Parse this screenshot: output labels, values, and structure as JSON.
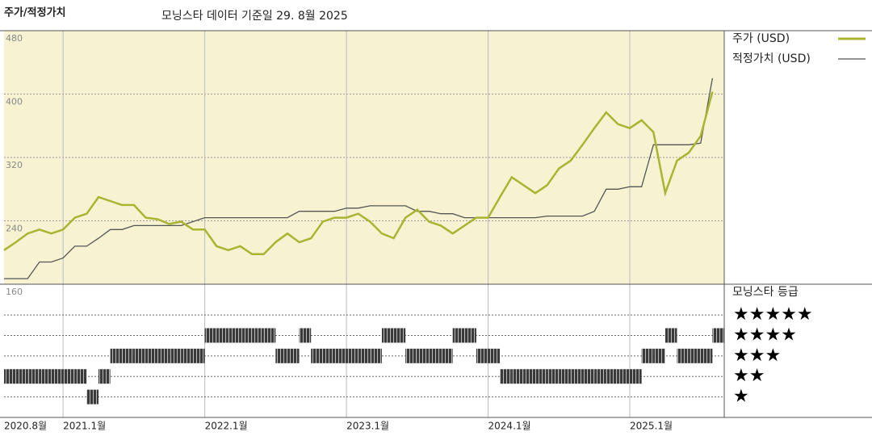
{
  "chart_data": {
    "type": "line",
    "title": "주가/적정가치",
    "subtitle": "모닝스타 데이터 기준일 29. 8월 2025",
    "x": [
      "2020-08",
      "2020-09",
      "2020-10",
      "2020-11",
      "2020-12",
      "2021-01",
      "2021-02",
      "2021-03",
      "2021-04",
      "2021-05",
      "2021-06",
      "2021-07",
      "2021-08",
      "2021-09",
      "2021-10",
      "2021-11",
      "2021-12",
      "2022-01",
      "2022-02",
      "2022-03",
      "2022-04",
      "2022-05",
      "2022-06",
      "2022-07",
      "2022-08",
      "2022-09",
      "2022-10",
      "2022-11",
      "2022-12",
      "2023-01",
      "2023-02",
      "2023-03",
      "2023-04",
      "2023-05",
      "2023-06",
      "2023-07",
      "2023-08",
      "2023-09",
      "2023-10",
      "2023-11",
      "2023-12",
      "2024-01",
      "2024-02",
      "2024-03",
      "2024-04",
      "2024-05",
      "2024-06",
      "2024-07",
      "2024-08",
      "2024-09",
      "2024-10",
      "2024-11",
      "2024-12",
      "2025-01",
      "2025-02",
      "2025-03",
      "2025-04",
      "2025-05",
      "2025-06",
      "2025-07",
      "2025-08"
    ],
    "xlim": [
      "2020-08",
      "2025-09"
    ],
    "xticks": [
      {
        "value": "2020-08",
        "label": "2020.8월"
      },
      {
        "value": "2021-01",
        "label": "2021.1월"
      },
      {
        "value": "2022-01",
        "label": "2022.1월"
      },
      {
        "value": "2023-01",
        "label": "2023.1월"
      },
      {
        "value": "2024-01",
        "label": "2024.1월"
      },
      {
        "value": "2025-01",
        "label": "2025.1월"
      }
    ],
    "ylim": [
      160,
      480
    ],
    "yticks": [
      160,
      240,
      320,
      400,
      480
    ],
    "series": [
      {
        "name": "주가 (USD)",
        "color": "#a9b431",
        "values": [
          203,
          213,
          224,
          229,
          224,
          229,
          244,
          249,
          270,
          265,
          260,
          260,
          244,
          242,
          236,
          239,
          229,
          229,
          208,
          203,
          208,
          198,
          198,
          213,
          224,
          213,
          218,
          239,
          244,
          244,
          249,
          239,
          224,
          218,
          244,
          254,
          239,
          234,
          224,
          234,
          244,
          244,
          270,
          295,
          285,
          275,
          285,
          306,
          316,
          336,
          357,
          377,
          362,
          357,
          367,
          352,
          275,
          316,
          326,
          347,
          403
        ]
      },
      {
        "name": "적정가치 (USD)",
        "color": "#555555",
        "values": [
          167,
          167,
          167,
          188,
          188,
          193,
          208,
          208,
          218,
          229,
          229,
          234,
          234,
          234,
          234,
          234,
          239,
          244,
          244,
          244,
          244,
          244,
          244,
          244,
          244,
          252,
          252,
          252,
          252,
          256,
          256,
          259,
          259,
          259,
          259,
          252,
          252,
          249,
          249,
          244,
          244,
          244,
          244,
          244,
          244,
          244,
          246,
          246,
          246,
          246,
          252,
          280,
          280,
          283,
          283,
          336,
          336,
          336,
          336,
          338,
          420
        ]
      }
    ],
    "ratings": {
      "title": "모닝스타 등급",
      "ylim": [
        0,
        6.5
      ],
      "levels": [
        {
          "value": 5,
          "label": "★★★★★"
        },
        {
          "value": 4,
          "label": "★★★★"
        },
        {
          "value": 3,
          "label": "★★★"
        },
        {
          "value": 2,
          "label": "★★"
        },
        {
          "value": 1,
          "label": "★"
        }
      ],
      "values": [
        2,
        2,
        2,
        2,
        2,
        2,
        2,
        1,
        2,
        3,
        3,
        3,
        3,
        3,
        3,
        3,
        3,
        4,
        4,
        4,
        4,
        4,
        4,
        3,
        3,
        4,
        3,
        3,
        3,
        3,
        3,
        3,
        4,
        4,
        3,
        3,
        3,
        3,
        4,
        4,
        3,
        3,
        2,
        2,
        2,
        2,
        2,
        2,
        2,
        2,
        2,
        2,
        2,
        2,
        3,
        3,
        4,
        3,
        3,
        3,
        4
      ]
    }
  }
}
